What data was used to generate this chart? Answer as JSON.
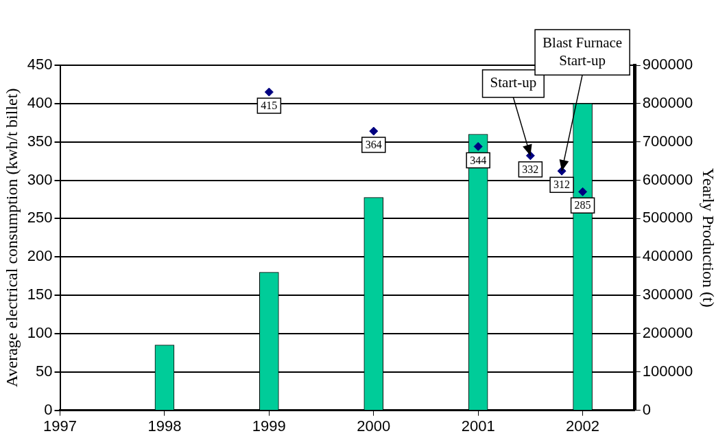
{
  "chart_data": {
    "type": "bar",
    "ylabel": "Average electrical consumption (kwh/t billet)",
    "y2label": "Yearly Production (t)",
    "xlim": [
      1997,
      2002.5
    ],
    "xticks": [
      1997,
      1998,
      1999,
      2000,
      2001,
      2002
    ],
    "ylim": [
      0,
      450
    ],
    "yticks": [
      0,
      50,
      100,
      150,
      200,
      250,
      300,
      350,
      400,
      450
    ],
    "y2lim": [
      0,
      900000
    ],
    "y2ticks": [
      0,
      100000,
      200000,
      300000,
      400000,
      500000,
      600000,
      700000,
      800000,
      900000
    ],
    "grid": "y",
    "legend": false,
    "series": [
      {
        "axis": "y2",
        "color": "#00cc99",
        "x": [
          1998,
          1999,
          2000,
          2001,
          2002
        ],
        "values": [
          170000,
          360000,
          555000,
          720000,
          800000
        ]
      },
      {
        "type": "scatter",
        "axis": "y",
        "color": "#000080",
        "marker": "diamond",
        "x": [
          1999,
          2000,
          2001,
          2001.5,
          2001.8,
          2002
        ],
        "values": [
          415,
          364,
          344,
          332,
          312,
          285
        ],
        "value_labels": [
          "415",
          "364",
          "344",
          "332",
          "312",
          "285"
        ]
      }
    ],
    "annotations": [
      {
        "text": "Start-up",
        "x": 2001.5,
        "y": 332
      },
      {
        "text": "Blast Furnace Start-up",
        "x": 2001.8,
        "y": 312
      }
    ]
  }
}
